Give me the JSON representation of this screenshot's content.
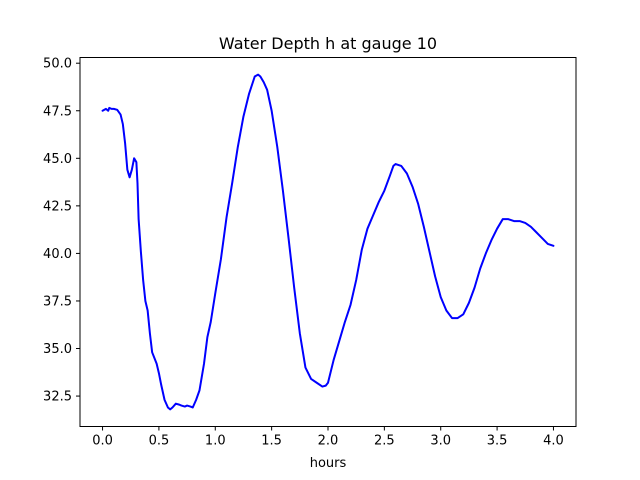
{
  "chart_data": {
    "type": "line",
    "title": "Water Depth h at gauge 10",
    "xlabel": "hours",
    "ylabel": "",
    "xlim": [
      -0.2,
      4.2
    ],
    "ylim": [
      30.9,
      50.3
    ],
    "xticks": [
      0.0,
      0.5,
      1.0,
      1.5,
      2.0,
      2.5,
      3.0,
      3.5,
      4.0
    ],
    "xtick_labels": [
      "0.0",
      "0.5",
      "1.0",
      "1.5",
      "2.0",
      "2.5",
      "3.0",
      "3.5",
      "4.0"
    ],
    "yticks": [
      32.5,
      35.0,
      37.5,
      40.0,
      42.5,
      45.0,
      47.5,
      50.0
    ],
    "ytick_labels": [
      "32.5",
      "35.0",
      "37.5",
      "40.0",
      "42.5",
      "45.0",
      "47.5",
      "50.0"
    ],
    "grid": false,
    "series": [
      {
        "color": "#0000ff",
        "x": [
          0.0,
          0.03,
          0.05,
          0.06,
          0.08,
          0.1,
          0.13,
          0.16,
          0.18,
          0.2,
          0.22,
          0.24,
          0.26,
          0.28,
          0.3,
          0.31,
          0.32,
          0.34,
          0.36,
          0.38,
          0.4,
          0.42,
          0.44,
          0.46,
          0.48,
          0.5,
          0.52,
          0.55,
          0.58,
          0.6,
          0.62,
          0.65,
          0.68,
          0.7,
          0.73,
          0.75,
          0.78,
          0.8,
          0.83,
          0.86,
          0.9,
          0.93,
          0.96,
          1.0,
          1.05,
          1.1,
          1.15,
          1.2,
          1.25,
          1.3,
          1.35,
          1.38,
          1.4,
          1.43,
          1.46,
          1.5,
          1.55,
          1.6,
          1.65,
          1.7,
          1.75,
          1.8,
          1.85,
          1.9,
          1.95,
          1.98,
          2.0,
          2.05,
          2.1,
          2.15,
          2.2,
          2.25,
          2.3,
          2.35,
          2.4,
          2.45,
          2.5,
          2.55,
          2.58,
          2.6,
          2.65,
          2.7,
          2.75,
          2.8,
          2.85,
          2.9,
          2.95,
          3.0,
          3.05,
          3.1,
          3.15,
          3.2,
          3.25,
          3.3,
          3.35,
          3.4,
          3.45,
          3.5,
          3.55,
          3.6,
          3.65,
          3.7,
          3.75,
          3.8,
          3.85,
          3.9,
          3.95,
          4.0
        ],
        "y": [
          47.5,
          47.6,
          47.5,
          47.65,
          47.6,
          47.6,
          47.55,
          47.3,
          46.8,
          45.8,
          44.4,
          44.0,
          44.4,
          45.0,
          44.8,
          43.7,
          41.8,
          40.1,
          38.6,
          37.5,
          37.0,
          35.8,
          34.8,
          34.5,
          34.2,
          33.7,
          33.1,
          32.3,
          31.9,
          31.8,
          31.9,
          32.1,
          32.05,
          32.0,
          31.95,
          32.0,
          31.95,
          31.9,
          32.3,
          32.8,
          34.2,
          35.6,
          36.4,
          37.9,
          39.7,
          41.9,
          43.7,
          45.6,
          47.2,
          48.4,
          49.3,
          49.4,
          49.3,
          49.0,
          48.6,
          47.5,
          45.6,
          43.3,
          40.8,
          38.2,
          35.8,
          34.0,
          33.4,
          33.2,
          33.0,
          33.05,
          33.2,
          34.4,
          35.4,
          36.4,
          37.3,
          38.6,
          40.2,
          41.3,
          42.0,
          42.7,
          43.3,
          44.1,
          44.6,
          44.7,
          44.6,
          44.2,
          43.5,
          42.6,
          41.4,
          40.1,
          38.8,
          37.7,
          37.0,
          36.6,
          36.6,
          36.8,
          37.4,
          38.2,
          39.2,
          40.0,
          40.7,
          41.3,
          41.8,
          41.8,
          41.7,
          41.7,
          41.6,
          41.4,
          41.1,
          40.8,
          40.5,
          40.4
        ]
      }
    ]
  }
}
